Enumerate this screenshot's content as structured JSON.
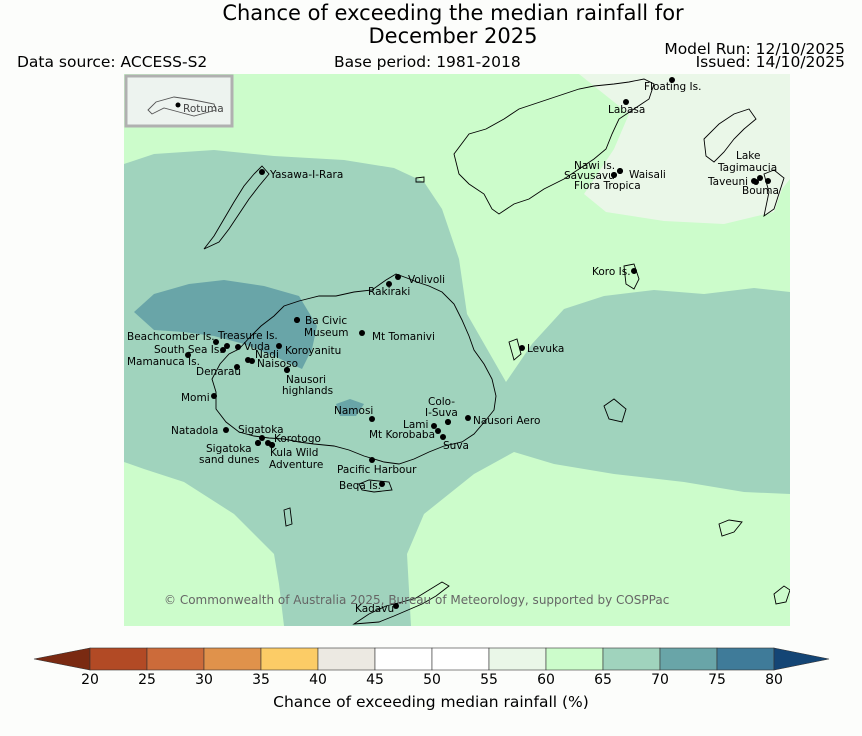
{
  "header": {
    "title_line1": "Chance of exceeding the median rainfall for",
    "title_line2": "December 2025",
    "data_source": "Data source: ACCESS-S2",
    "base_period": "Base period: 1981-2018",
    "model_run": "Model Run: 12/10/2025",
    "issued": "Issued: 14/10/2025"
  },
  "map": {
    "inset_label": "Rotuma",
    "credit": "© Commonwealth of Australia 2025, Bureau of Meteorology, supported by COSPPac",
    "places": [
      "Floating Is.",
      "Labasa",
      "Nawi Is.",
      "Savusavu",
      "Flora Tropica",
      "Waisali",
      "Lake",
      "Tagimaucia",
      "Taveuni",
      "Bouma",
      "Yasawa-I-Rara",
      "Volivoli",
      "Rakiraki",
      "Koro Is.",
      "Ba Civic",
      "Museum",
      "Mt Tomanivi",
      "Beachcomber Is.",
      "Treasure Is.",
      "South Sea Is.",
      "Vuda",
      "Koroyanitu",
      "Nadi",
      "Mamanuca Is.",
      "Naisoso",
      "Denarau",
      "Nausori",
      "highlands",
      "Levuka",
      "Momi",
      "Namosi",
      "Colo-",
      "I-Suva",
      "Nausori Aero",
      "Lami",
      "Mt Korobaba",
      "Suva",
      "Natadola",
      "Sigatoka",
      "Korotogo",
      "Sigatoka",
      "sand dunes",
      "Kula Wild",
      "Adventure",
      "Pacific Harbour",
      "Beqa Is.",
      "Kadavu"
    ]
  },
  "colorbar": {
    "ticks": [
      "20",
      "25",
      "30",
      "35",
      "40",
      "45",
      "50",
      "55",
      "60",
      "65",
      "70",
      "75",
      "80"
    ],
    "colors": [
      "#7a2a12",
      "#b24a25",
      "#cc6b3a",
      "#e0924b",
      "#fccc66",
      "#ece9e2",
      "#ffffff",
      "#ffffff",
      "#eaf7e8",
      "#ccfccb",
      "#a0d3bd",
      "#69a5a8",
      "#3f7b99",
      "#144575"
    ],
    "label": "Chance of exceeding median rainfall (%)"
  }
}
